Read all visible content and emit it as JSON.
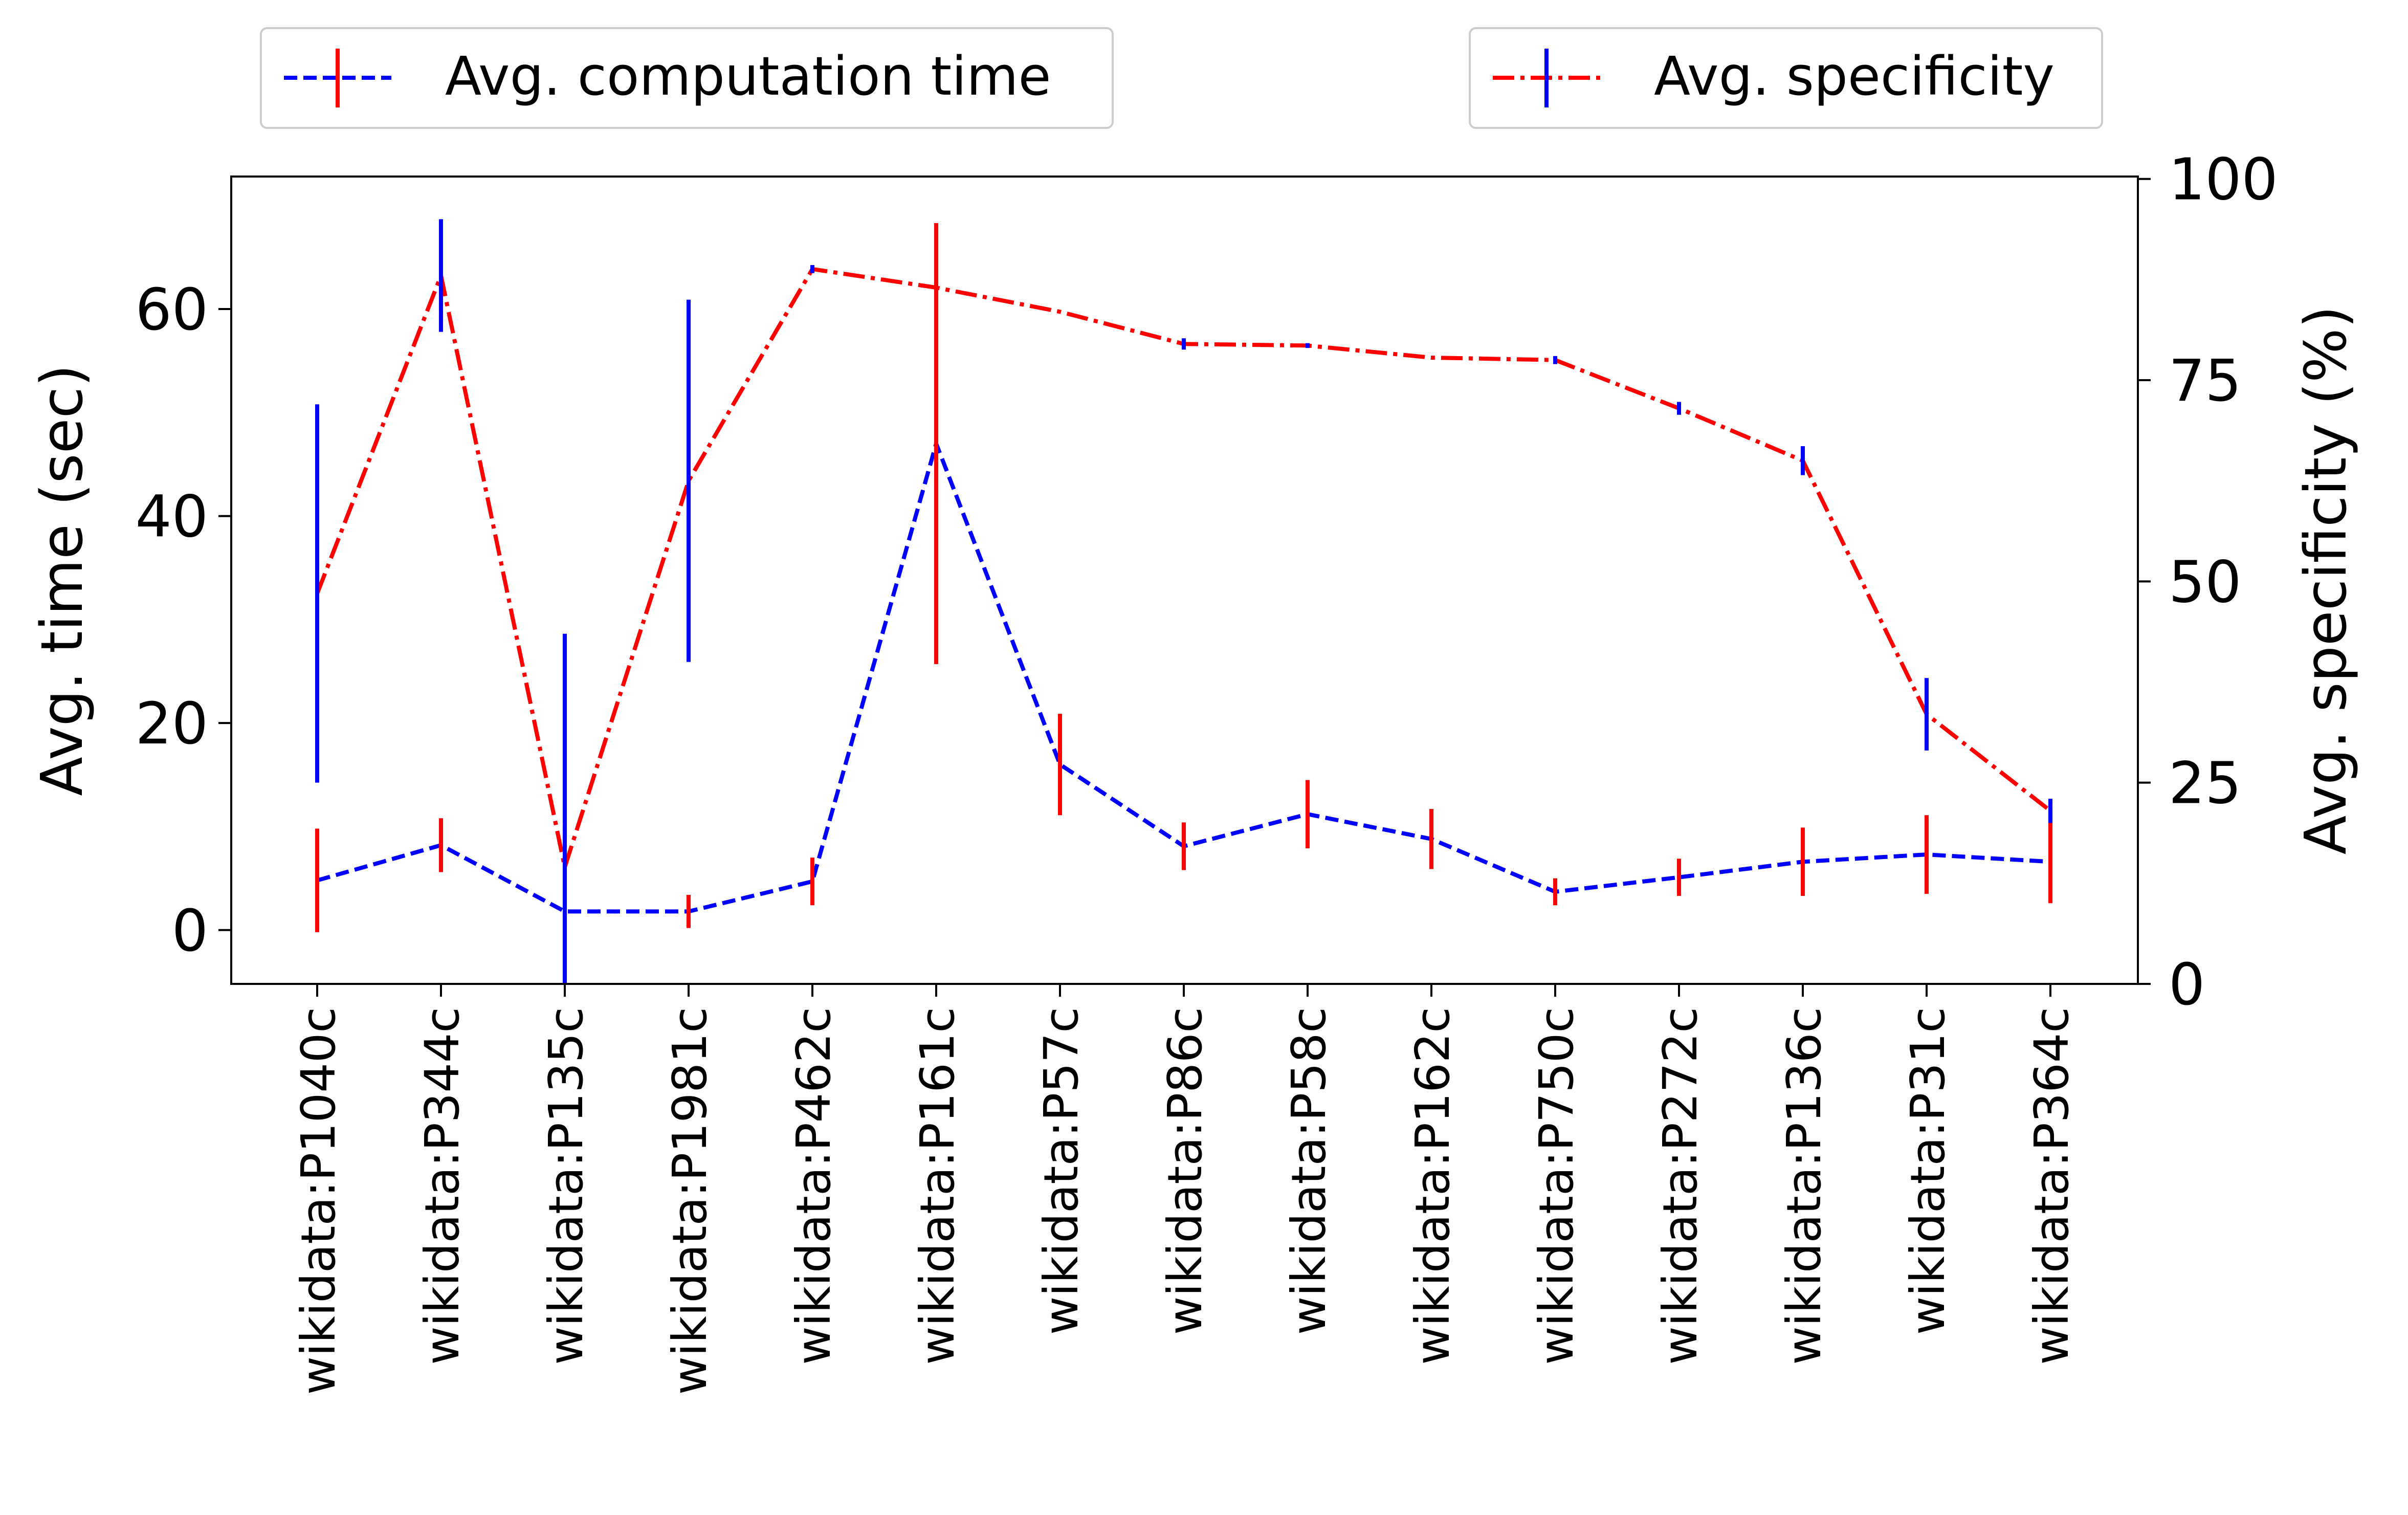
{
  "chart_data": {
    "type": "line",
    "categories": [
      "wikidata:P1040c",
      "wikidata:P344c",
      "wikidata:P135c",
      "wikidata:P1981c",
      "wikidata:P462c",
      "wikidata:P161c",
      "wikidata:P57c",
      "wikidata:P86c",
      "wikidata:P58c",
      "wikidata:P162c",
      "wikidata:P750c",
      "wikidata:P272c",
      "wikidata:P136c",
      "wikidata:P31c",
      "wikidata:P364c"
    ],
    "left_axis": {
      "label": "Avg. time (sec)",
      "range": [
        -5.2,
        72.8
      ],
      "ticks": [
        0,
        20,
        40,
        60
      ]
    },
    "right_axis": {
      "label": "Avg. specificity (%)",
      "range": [
        0,
        100.3
      ],
      "ticks": [
        0,
        25,
        50,
        75,
        100
      ]
    },
    "series": [
      {
        "name": "Avg. computation time",
        "axis": "left",
        "color": "#0000ff",
        "errorbar_color": "#ff0000",
        "linestyle": "dashed",
        "values": [
          4.8,
          8.2,
          1.8,
          1.8,
          4.7,
          47.0,
          16.0,
          8.1,
          11.2,
          8.8,
          3.7,
          5.1,
          6.6,
          7.3,
          6.6
        ],
        "errors": [
          5.0,
          2.6,
          0.0,
          1.6,
          2.3,
          21.3,
          4.9,
          2.3,
          3.3,
          2.9,
          1.3,
          1.8,
          3.3,
          3.8,
          4.0
        ]
      },
      {
        "name": "Avg. specificity",
        "axis": "right",
        "color": "#ff0000",
        "errorbar_color": "#0000ff",
        "linestyle": "dashdot",
        "values": [
          48.5,
          88.0,
          14.5,
          62.5,
          88.8,
          86.5,
          83.5,
          79.5,
          79.3,
          77.8,
          77.5,
          71.5,
          65.0,
          33.5,
          21.5
        ],
        "errors": [
          23.5,
          7.0,
          29.0,
          22.5,
          0.5,
          0.0,
          0.0,
          0.7,
          0.3,
          0.0,
          0.5,
          0.8,
          1.8,
          4.5,
          1.5
        ]
      }
    ],
    "grid": false,
    "legend": [
      "top-left",
      "top-right"
    ]
  }
}
